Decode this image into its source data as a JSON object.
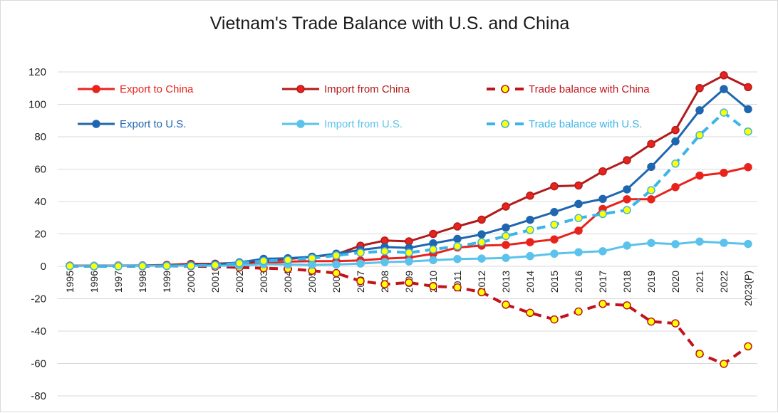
{
  "chart_data": {
    "type": "line",
    "title": "Vietnam's Trade Balance with U.S. and China",
    "xlabel": "",
    "ylabel": "",
    "ylim": [
      -80,
      120
    ],
    "yticks": [
      -80,
      -60,
      -40,
      -20,
      0,
      20,
      40,
      60,
      80,
      100,
      120
    ],
    "grid": "horizontal",
    "legend_position": "top, inside plot, 3 columns x 2 rows",
    "categories": [
      "1995",
      "1996",
      "1997",
      "1998",
      "1999",
      "2000",
      "2001",
      "2002",
      "2003",
      "2004",
      "2005",
      "2006",
      "2007",
      "2008",
      "2009",
      "2010",
      "2011",
      "2012",
      "2013",
      "2014",
      "2015",
      "2016",
      "2017",
      "2018",
      "2019",
      "2020",
      "2021",
      "2022",
      "2023(P)"
    ],
    "series": [
      {
        "name": "Export to China",
        "color": "#e8231c",
        "marker_fill": "#e8231c",
        "dashed": false,
        "values": [
          0.4,
          0.3,
          0.5,
          0.5,
          0.9,
          1.5,
          1.4,
          1.5,
          1.9,
          2.9,
          3.2,
          3.2,
          3.6,
          4.8,
          5.4,
          7.7,
          11.6,
          12.8,
          13.2,
          14.9,
          16.6,
          22.0,
          35.4,
          41.4,
          41.4,
          48.9,
          56.0,
          57.7,
          61.2
        ]
      },
      {
        "name": "Import from China",
        "color": "#b11a1a",
        "marker_fill": "#e8231c",
        "dashed": false,
        "values": [
          0.3,
          0.3,
          0.4,
          0.5,
          0.7,
          1.4,
          1.6,
          2.2,
          3.1,
          4.5,
          5.9,
          7.4,
          12.7,
          15.9,
          15.4,
          20.0,
          24.6,
          28.8,
          36.9,
          43.6,
          49.4,
          49.9,
          58.6,
          65.5,
          75.5,
          84.1,
          110.0,
          117.9,
          110.6
        ]
      },
      {
        "name": "Trade balance with China",
        "color": "#c0141c",
        "marker_fill": "#ffff00",
        "dashed": true,
        "values": [
          0.1,
          0.0,
          0.1,
          0.0,
          0.2,
          0.1,
          -0.2,
          -0.7,
          -1.2,
          -1.6,
          -2.7,
          -4.2,
          -9.1,
          -11.1,
          -10.0,
          -12.3,
          -13.0,
          -16.0,
          -23.7,
          -28.7,
          -32.8,
          -27.9,
          -23.2,
          -24.1,
          -34.1,
          -35.2,
          -54.0,
          -60.2,
          -49.4
        ]
      },
      {
        "name": "Export to U.S.",
        "color": "#1f66b0",
        "marker_fill": "#1f66b0",
        "dashed": false,
        "values": [
          0.2,
          0.2,
          0.3,
          0.4,
          0.5,
          0.7,
          1.1,
          2.4,
          4.6,
          5.0,
          5.9,
          7.8,
          10.1,
          11.9,
          11.4,
          14.2,
          16.9,
          19.7,
          23.9,
          28.7,
          33.5,
          38.5,
          41.6,
          47.5,
          61.4,
          77.1,
          96.3,
          109.4,
          97.0
        ]
      },
      {
        "name": "Import from U.S.",
        "color": "#5bc2eb",
        "marker_fill": "#5bc2eb",
        "dashed": false,
        "values": [
          0.1,
          0.2,
          0.3,
          0.3,
          0.3,
          0.4,
          0.4,
          0.5,
          1.3,
          1.1,
          0.9,
          1.1,
          1.7,
          2.6,
          3.0,
          3.8,
          4.5,
          4.8,
          5.2,
          6.3,
          7.8,
          8.7,
          9.3,
          12.8,
          14.4,
          13.7,
          15.3,
          14.5,
          13.8
        ]
      },
      {
        "name": "Trade balance with U.S.",
        "color": "#3bb5e6",
        "marker_fill": "#ffff00",
        "dashed": true,
        "values": [
          0.1,
          0.0,
          0.0,
          0.1,
          0.2,
          0.3,
          0.7,
          1.9,
          3.3,
          3.9,
          5.0,
          6.7,
          8.4,
          9.3,
          8.4,
          10.4,
          12.4,
          14.9,
          18.7,
          22.4,
          25.7,
          29.8,
          32.3,
          34.7,
          47.0,
          63.4,
          81.0,
          94.9,
          83.2
        ]
      }
    ]
  }
}
